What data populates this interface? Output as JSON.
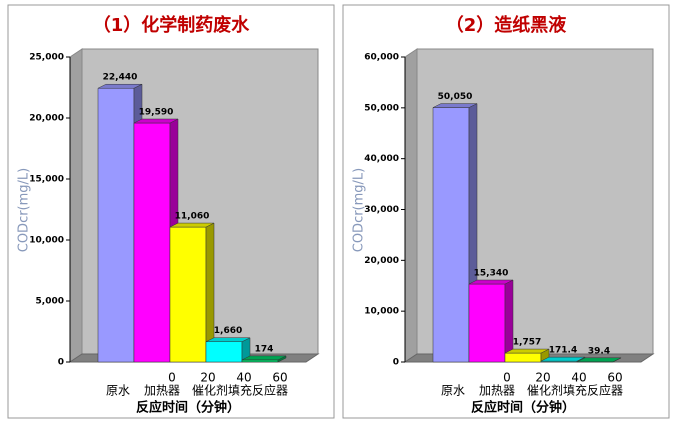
{
  "chart_data": [
    {
      "type": "bar3d",
      "title": "（1）化学制药废水",
      "ylabel": "CODcr(mg/L)",
      "xlabel": "反应时间（分钟）",
      "categories": [
        null,
        "0",
        "20",
        "40",
        "60"
      ],
      "x_group_labels": [
        "原水",
        "加热器",
        "催化剂填充反应器"
      ],
      "values": [
        22440,
        19590,
        11060,
        1660,
        174
      ],
      "value_labels": [
        "22,440",
        "19,590",
        "11,060",
        "1,660",
        "174"
      ],
      "colors": [
        "#9999ff",
        "#ff00ff",
        "#ffff00",
        "#00ffff",
        "#00cc66"
      ],
      "ylim": [
        0,
        25000
      ],
      "yticks": [
        0,
        {
          "value": 5000,
          "label": "5,000"
        },
        {
          "value": 10000,
          "label": "10,000"
        },
        {
          "value": 15000,
          "label": "15,000"
        },
        {
          "value": 20000,
          "label": "20,000"
        },
        {
          "value": 25000,
          "label": "25,000"
        }
      ],
      "grid": false
    },
    {
      "type": "bar3d",
      "title": "（2）造纸黑液",
      "ylabel": "CODcr(mg/L)",
      "xlabel": "反应时间（分钟）",
      "categories": [
        null,
        "0",
        "20",
        "40",
        "60"
      ],
      "x_group_labels": [
        "原水",
        "加热器",
        "催化剂填充反应器"
      ],
      "values": [
        50050,
        15340,
        1757,
        171.4,
        39.4
      ],
      "value_labels": [
        "50,050",
        "15,340",
        "1,757",
        "171.4",
        "39.4"
      ],
      "colors": [
        "#9999ff",
        "#ff00ff",
        "#ffff00",
        "#00ffff",
        "#00cc66"
      ],
      "ylim": [
        0,
        60000
      ],
      "yticks": [
        0,
        {
          "value": 10000,
          "label": "10,000"
        },
        {
          "value": 20000,
          "label": "20,000"
        },
        {
          "value": 30000,
          "label": "30,000"
        },
        {
          "value": 40000,
          "label": "40,000"
        },
        {
          "value": 50000,
          "label": "50,000"
        },
        {
          "value": 60000,
          "label": "60,000"
        }
      ],
      "grid": false
    }
  ]
}
